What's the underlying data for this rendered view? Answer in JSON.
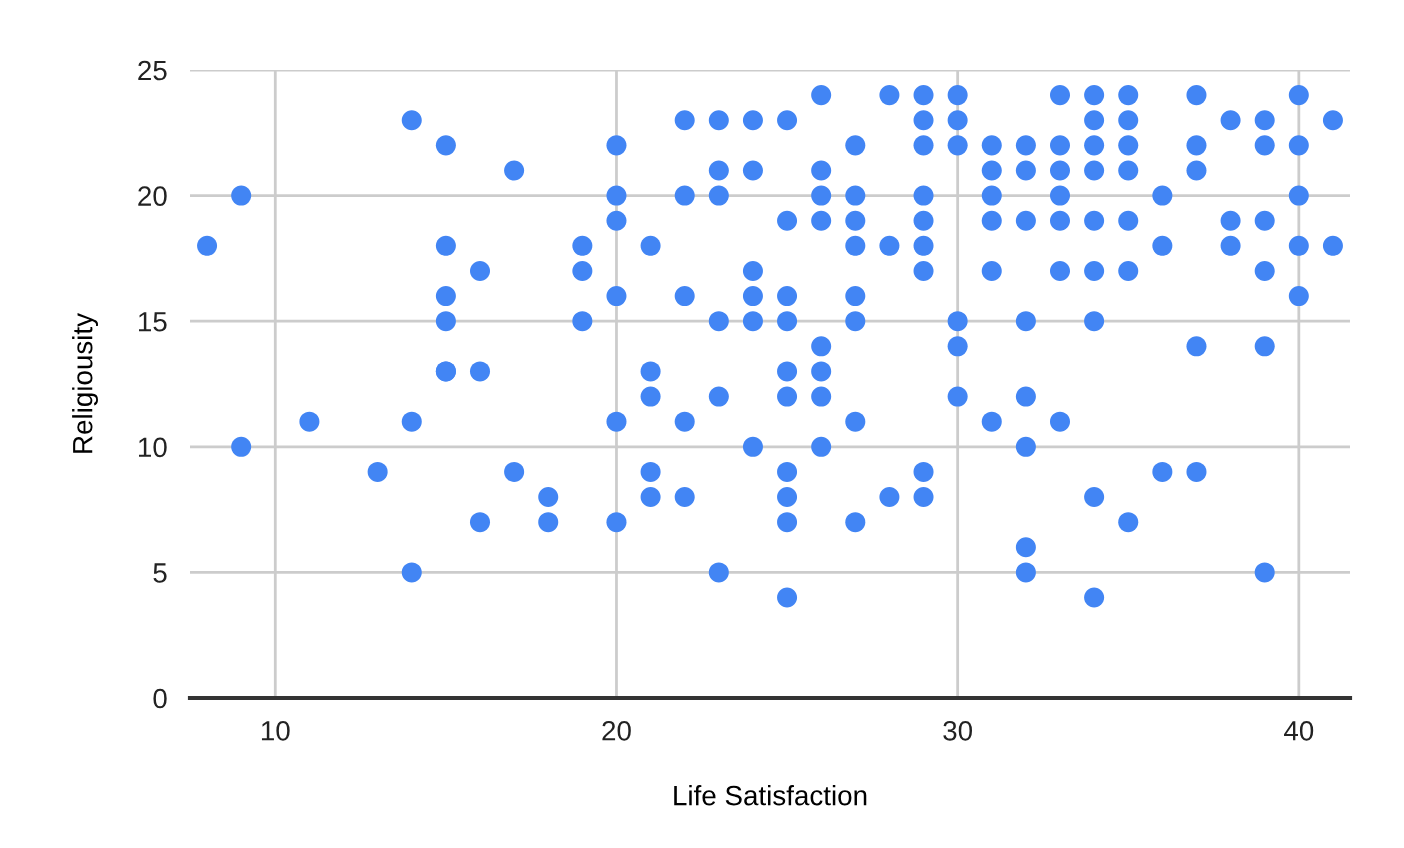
{
  "chart_data": {
    "type": "scatter",
    "xlabel": "Life Satisfaction",
    "ylabel": "Religiousity",
    "series": [
      {
        "color": "#4285f4",
        "x": [
          8,
          9,
          9,
          11,
          13,
          14,
          14,
          14,
          15,
          15,
          15,
          15,
          15,
          15,
          16,
          16,
          16,
          17,
          17,
          18,
          18,
          19,
          19,
          19,
          20,
          20,
          20,
          20,
          20,
          20,
          21,
          21,
          21,
          21,
          21,
          22,
          22,
          22,
          22,
          22,
          23,
          23,
          23,
          23,
          23,
          23,
          24,
          24,
          24,
          24,
          24,
          24,
          25,
          25,
          25,
          25,
          25,
          25,
          25,
          25,
          25,
          25,
          26,
          26,
          26,
          26,
          26,
          26,
          26,
          26,
          27,
          27,
          27,
          27,
          27,
          27,
          27,
          27,
          28,
          28,
          28,
          29,
          29,
          29,
          29,
          29,
          29,
          29,
          29,
          29,
          30,
          30,
          30,
          30,
          30,
          30,
          31,
          31,
          31,
          31,
          31,
          31,
          32,
          32,
          32,
          32,
          32,
          32,
          32,
          32,
          33,
          33,
          33,
          33,
          33,
          33,
          33,
          34,
          34,
          34,
          34,
          34,
          34,
          34,
          34,
          34,
          35,
          35,
          35,
          35,
          35,
          35,
          35,
          36,
          36,
          36,
          37,
          37,
          37,
          37,
          37,
          38,
          38,
          38,
          39,
          39,
          39,
          39,
          39,
          39,
          40,
          40,
          40,
          40,
          40,
          41,
          41
        ],
        "values": [
          18,
          20,
          10,
          11,
          9,
          23,
          11,
          5,
          22,
          18,
          16,
          15,
          13,
          13,
          17,
          13,
          7,
          21,
          9,
          8,
          7,
          18,
          17,
          15,
          22,
          20,
          19,
          16,
          11,
          7,
          18,
          13,
          12,
          9,
          8,
          23,
          20,
          16,
          11,
          8,
          23,
          21,
          20,
          15,
          12,
          5,
          23,
          21,
          17,
          16,
          15,
          10,
          23,
          19,
          16,
          15,
          13,
          12,
          9,
          8,
          7,
          4,
          24,
          21,
          20,
          19,
          14,
          13,
          12,
          10,
          22,
          20,
          19,
          18,
          16,
          15,
          11,
          7,
          24,
          18,
          8,
          24,
          23,
          22,
          20,
          19,
          18,
          17,
          9,
          8,
          24,
          23,
          22,
          15,
          14,
          12,
          22,
          21,
          20,
          19,
          17,
          11,
          22,
          21,
          19,
          15,
          12,
          10,
          6,
          5,
          24,
          22,
          21,
          20,
          19,
          17,
          11,
          24,
          23,
          22,
          21,
          19,
          17,
          15,
          8,
          4,
          24,
          23,
          22,
          21,
          19,
          17,
          7,
          20,
          18,
          9,
          24,
          22,
          21,
          14,
          9,
          23,
          19,
          18,
          23,
          22,
          19,
          17,
          14,
          5,
          24,
          22,
          20,
          18,
          16,
          23,
          18
        ]
      }
    ],
    "xlim": [
      7.5,
      41.5
    ],
    "ylim": [
      0,
      25
    ],
    "xticks": [
      10,
      20,
      30,
      40
    ],
    "yticks": [
      0,
      5,
      10,
      15,
      20,
      25
    ],
    "grid": true,
    "marker": "circle"
  }
}
